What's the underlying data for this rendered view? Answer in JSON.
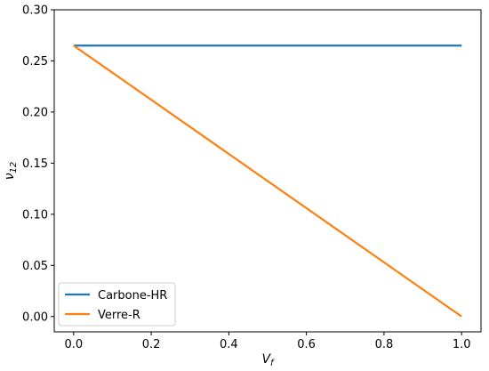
{
  "chart_data": {
    "type": "line",
    "title": "",
    "xlabel": "V",
    "xlabel_sub": "f",
    "ylabel": "ν",
    "ylabel_sub": "12",
    "xlim": [
      -0.05,
      1.05
    ],
    "ylim": [
      -0.015,
      0.3
    ],
    "xticks": [
      "0.0",
      "0.2",
      "0.4",
      "0.6",
      "0.8",
      "1.0"
    ],
    "yticks": [
      "0.00",
      "0.05",
      "0.10",
      "0.15",
      "0.20",
      "0.25",
      "0.30"
    ],
    "grid": false,
    "legend_position": "bottom-left",
    "series": [
      {
        "name": "Carbone-HR",
        "color": "#1f77b4",
        "x": [
          0.0,
          1.0
        ],
        "y": [
          0.265,
          0.265
        ]
      },
      {
        "name": "Verre-R",
        "color": "#ff7f0e",
        "x": [
          0.0,
          1.0
        ],
        "y": [
          0.265,
          0.0
        ]
      }
    ]
  }
}
